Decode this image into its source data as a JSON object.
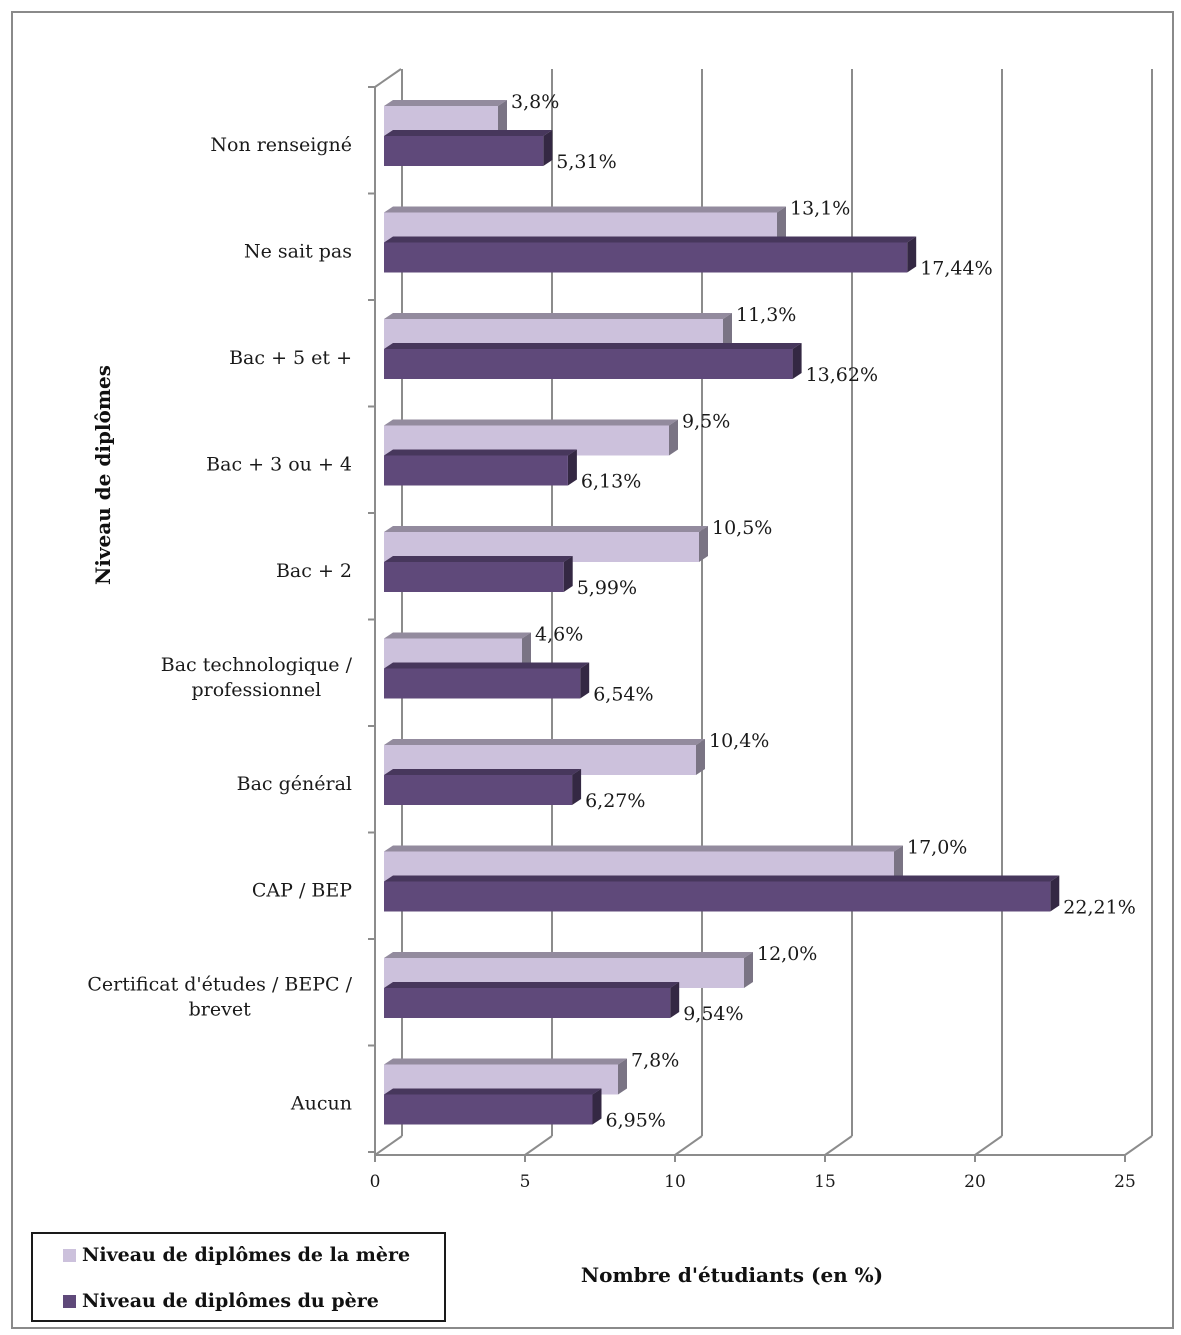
{
  "chart_data": {
    "type": "bar",
    "orientation": "horizontal",
    "categories": [
      "Non renseigné",
      "Ne sait pas",
      "Bac + 5 et +",
      "Bac + 3 ou + 4",
      "Bac + 2",
      "Bac technologique / professionnel",
      "Bac général",
      "CAP / BEP",
      "Certificat d'études / BEPC / brevet",
      "Aucun"
    ],
    "category_lines": [
      [
        "Non renseigné"
      ],
      [
        "Ne sait pas"
      ],
      [
        "Bac + 5 et +"
      ],
      [
        "Bac + 3 ou + 4"
      ],
      [
        "Bac + 2"
      ],
      [
        "Bac technologique /",
        "professionnel"
      ],
      [
        "Bac général"
      ],
      [
        "CAP / BEP"
      ],
      [
        "Certificat d'études / BEPC /",
        "brevet"
      ],
      [
        "Aucun"
      ]
    ],
    "series": [
      {
        "name": "Niveau de diplômes de la mère",
        "color": "#ccc1dc",
        "values": [
          3.8,
          13.1,
          11.3,
          9.5,
          10.5,
          4.6,
          10.4,
          17.0,
          12.0,
          7.8
        ],
        "labels": [
          "3,8%",
          "13,1%",
          "11,3%",
          "9,5%",
          "10,5%",
          "4,6%",
          "10,4%",
          "17,0%",
          "12,0%",
          "7,8%"
        ]
      },
      {
        "name": "Niveau de diplômes du père",
        "color": "#5f497a",
        "values": [
          5.31,
          17.44,
          13.62,
          6.13,
          5.99,
          6.54,
          6.27,
          22.21,
          9.54,
          6.95
        ],
        "labels": [
          "5,31%",
          "17,44%",
          "13,62%",
          "6,13%",
          "5,99%",
          "6,54%",
          "6,27%",
          "22,21%",
          "9,54%",
          "6,95%"
        ]
      }
    ],
    "xlim": [
      0,
      25
    ],
    "xticks": [
      0,
      5,
      10,
      15,
      20,
      25
    ],
    "xlabel": "Nombre d'étudiants (en %)",
    "ylabel": "Niveau de diplômes",
    "grid": true,
    "legend_position": "bottom-left"
  }
}
